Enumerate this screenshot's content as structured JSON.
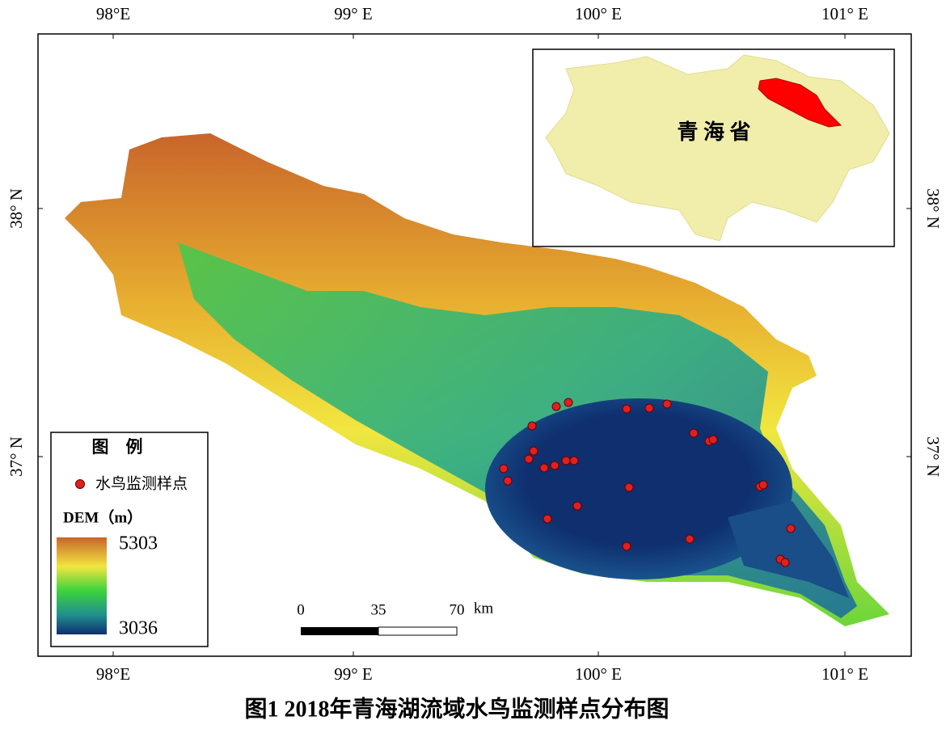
{
  "map": {
    "longitude_labels": [
      "98°E",
      "99° E",
      "100° E",
      "101° E"
    ],
    "latitude_labels": [
      "38° N",
      "37° N"
    ],
    "inset_label": "青 海 省",
    "legend": {
      "title": "图　例",
      "point_label": "水鸟监测样点",
      "dem_title": "DEM（m）",
      "dem_max": 5303,
      "dem_min": 3036
    },
    "scale_bar": {
      "ticks": [
        "0",
        "35",
        "70"
      ],
      "unit": "km"
    }
  },
  "caption": "图1 2018年青海湖流域水鸟监测样点分布图"
}
